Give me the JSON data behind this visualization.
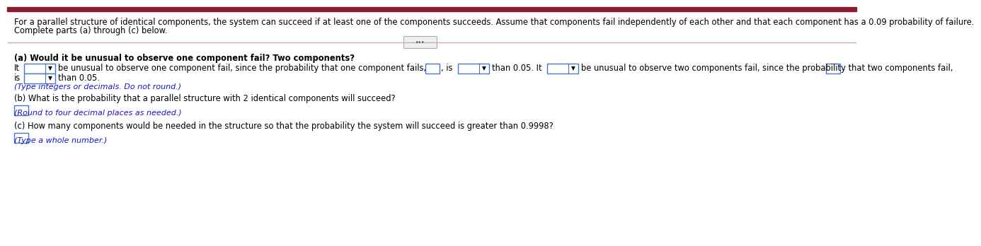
{
  "bg_color": "#ffffff",
  "top_bar_color": "#8B1A2D",
  "header_text_line1": "For a parallel structure of identical components, the system can succeed if at least one of the components succeeds. Assume that components fail independently of each other and that each component has a 0.09 probability of failure.",
  "header_text_line2": "Complete parts (a) through (c) below.",
  "divider_color": "#c9adb2",
  "dots_button_color": "#f0f0f0",
  "part_a_header": "(a) Would it be unusual to observe one component fail? Two components?",
  "part_b_header": "(b) What is the probability that a parallel structure with 2 identical components will succeed?",
  "part_b_note": "(Round to four decimal places as needed.)",
  "part_c_header": "(c) How many components would be needed in the structure so that the probability the system will succeed is greater than 0.9998?",
  "part_c_note": "(Type a whole number.)",
  "part_a_note": "(Type integers or decimals. Do not round.)",
  "note_color": "#1515cc",
  "text_color": "#000000",
  "dropdown_edge": "#4477cc",
  "blank_edge": "#4477cc"
}
